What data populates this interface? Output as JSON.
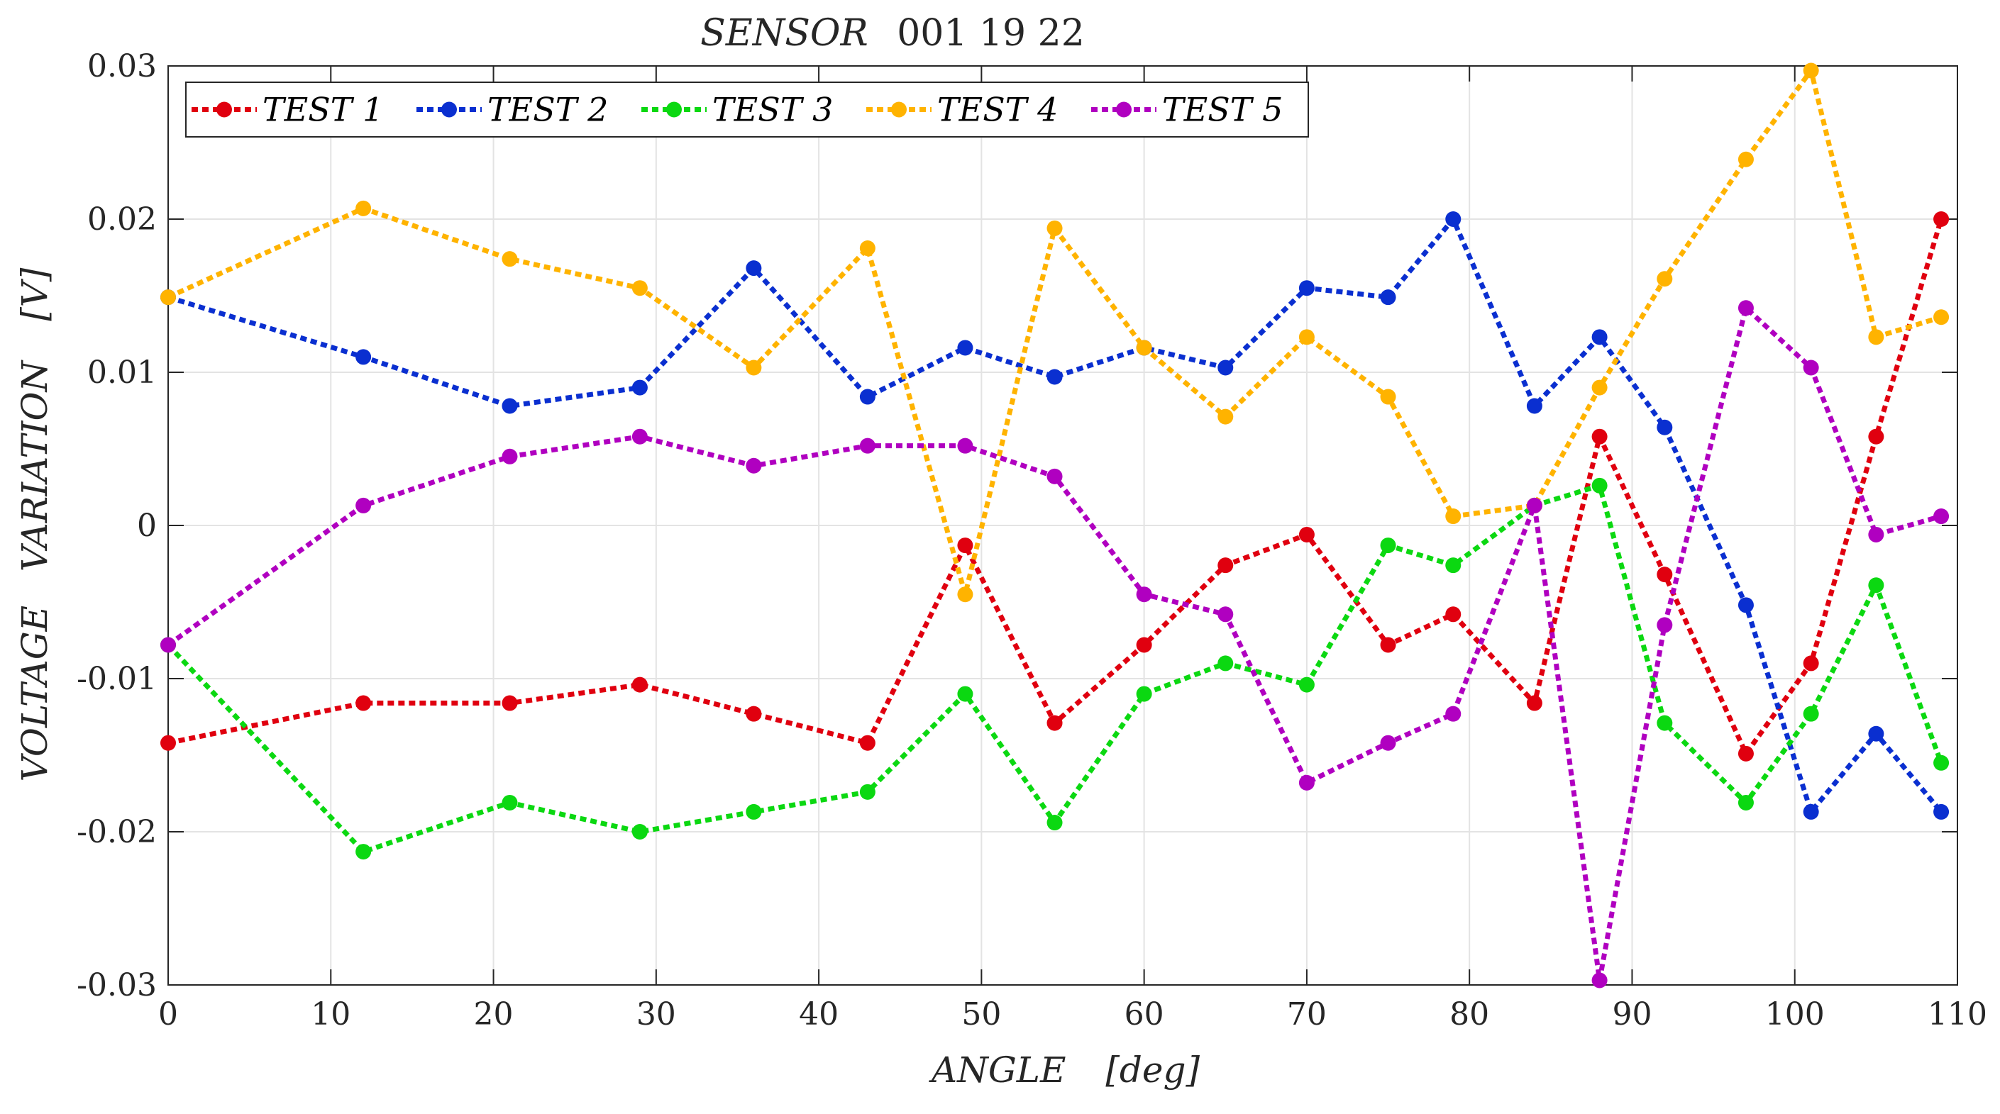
{
  "chart_data": {
    "type": "line",
    "title_label": "SENSOR",
    "title_id": "001 19 22",
    "xlabel_main": "ANGLE",
    "xlabel_unit": "[deg]",
    "ylabel_main": "VOLTAGE   VARIATION",
    "ylabel_unit": "[V]",
    "xlim": [
      0,
      110
    ],
    "ylim": [
      -0.03,
      0.03
    ],
    "x_ticks": [
      0,
      10,
      20,
      30,
      40,
      50,
      60,
      70,
      80,
      90,
      100,
      110
    ],
    "y_ticks": [
      -0.03,
      -0.02,
      -0.01,
      0,
      0.01,
      0.02,
      0.03
    ],
    "x_tick_labels": [
      "0",
      "10",
      "20",
      "30",
      "40",
      "50",
      "60",
      "70",
      "80",
      "90",
      "100",
      "110"
    ],
    "y_tick_labels": [
      "-0.03",
      "-0.02",
      "-0.01",
      "0",
      "0.01",
      "0.02",
      "0.03"
    ],
    "grid": true,
    "legend_position": "top-left",
    "x": [
      0,
      12,
      21,
      29,
      36,
      43,
      49,
      54.5,
      60,
      65,
      70,
      75,
      79,
      84,
      88,
      92,
      97,
      101,
      105,
      109
    ],
    "series": [
      {
        "name": "TEST 1",
        "color": "#e0000f",
        "values": [
          -0.0142,
          -0.0116,
          -0.0116,
          -0.0104,
          -0.0123,
          -0.0142,
          -0.0013,
          -0.0129,
          -0.0078,
          -0.0026,
          -0.0006,
          -0.0078,
          -0.0058,
          -0.0116,
          0.0058,
          -0.0032,
          -0.0149,
          -0.009,
          0.0058,
          0.02
        ]
      },
      {
        "name": "TEST 2",
        "color": "#0a2fd0",
        "values": [
          0.0149,
          0.011,
          0.0078,
          0.009,
          0.0168,
          0.0084,
          0.0116,
          0.0097,
          0.0116,
          0.0103,
          0.0155,
          0.0149,
          0.02,
          0.0078,
          0.0123,
          0.0064,
          -0.0052,
          -0.0187,
          -0.0136,
          -0.0187
        ]
      },
      {
        "name": "TEST 3",
        "color": "#0bd811",
        "values": [
          -0.0078,
          -0.0213,
          -0.0181,
          -0.02,
          -0.0187,
          -0.0174,
          -0.011,
          -0.0194,
          -0.011,
          -0.009,
          -0.0104,
          -0.0013,
          -0.0026,
          0.0013,
          0.0026,
          -0.0129,
          -0.0181,
          -0.0123,
          -0.0039,
          -0.0155
        ]
      },
      {
        "name": "TEST 4",
        "color": "#ffb300",
        "values": [
          0.0149,
          0.0207,
          0.0174,
          0.0155,
          0.0103,
          0.0181,
          -0.0045,
          0.0194,
          0.0116,
          0.0071,
          0.0123,
          0.0084,
          0.0006,
          0.0013,
          0.009,
          0.0161,
          0.0239,
          0.0297,
          0.0123,
          0.0136
        ]
      },
      {
        "name": "TEST 5",
        "color": "#b000c0",
        "values": [
          -0.0078,
          0.0013,
          0.0045,
          0.0058,
          0.0039,
          0.0052,
          0.0052,
          0.0032,
          -0.0045,
          -0.0058,
          -0.0168,
          -0.0142,
          -0.0123,
          0.0013,
          -0.0297,
          -0.0065,
          0.0142,
          0.0103,
          -0.0006,
          0.0006
        ]
      }
    ]
  }
}
